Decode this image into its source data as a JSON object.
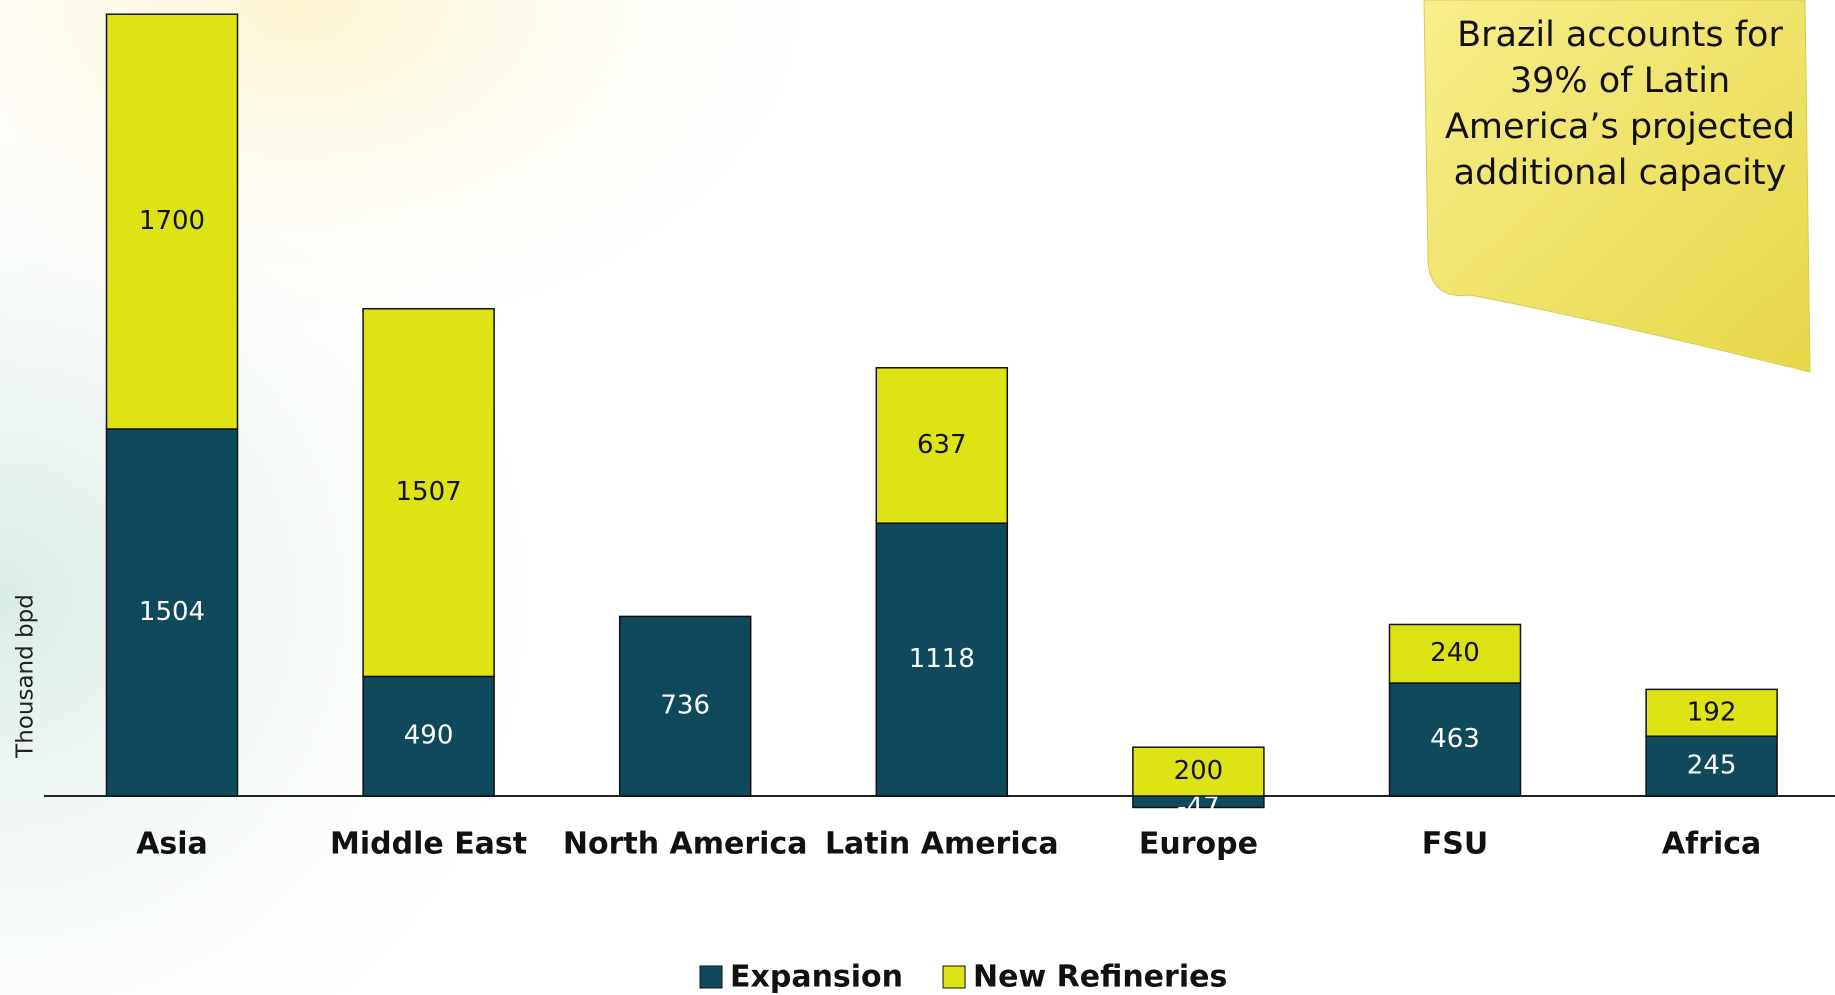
{
  "chart_data": {
    "type": "bar",
    "stacked": true,
    "ylabel": "Thousand bpd",
    "annotation": "Brazil accounts for 39% of Latin America’s projected additional capacity",
    "categories": [
      "Asia",
      "Middle East",
      "North America",
      "Latin America",
      "Europe",
      "FSU",
      "Africa"
    ],
    "series": [
      {
        "name": "Expansion",
        "color": "#0e4a5c",
        "values": [
          1504,
          490,
          736,
          1118,
          -47,
          463,
          245
        ]
      },
      {
        "name": "New Refineries",
        "color": "#dde314",
        "values": [
          1700,
          1507,
          null,
          637,
          200,
          240,
          192
        ]
      }
    ],
    "ylim": [
      -500,
      3250
    ],
    "legend": "bottom"
  }
}
